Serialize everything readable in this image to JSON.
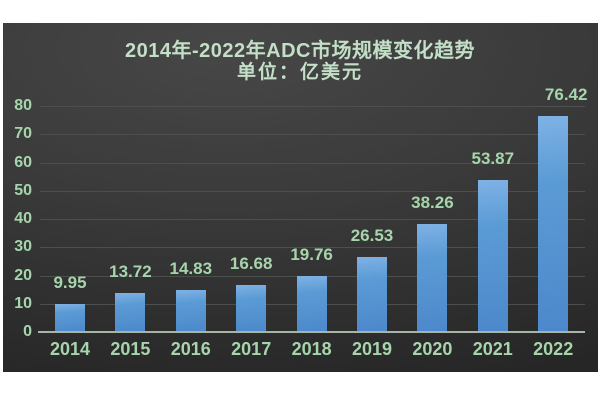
{
  "chart_data": {
    "type": "bar",
    "title": "2014年-2022年ADC市场规模变化趋势",
    "subtitle": "单位：亿美元",
    "categories": [
      "2014",
      "2015",
      "2016",
      "2017",
      "2018",
      "2019",
      "2020",
      "2021",
      "2022"
    ],
    "values": [
      9.95,
      13.72,
      14.83,
      16.68,
      19.76,
      26.53,
      38.26,
      53.87,
      76.42
    ],
    "data_labels": [
      "9.95",
      "13.72",
      "14.83",
      "16.68",
      "19.76",
      "26.53",
      "38.26",
      "53.87",
      "76.42"
    ],
    "xlabel": "",
    "ylabel": "",
    "ylim": [
      0,
      80
    ],
    "yticks": [
      0,
      10,
      20,
      30,
      40,
      50,
      60,
      70,
      80
    ],
    "grid": true,
    "legend": false
  },
  "colors": {
    "page_bg": "#ffffff",
    "panel_bg_center": "#474747",
    "panel_bg_edge": "#262626",
    "title_text": "#c3dfc7",
    "label_text": "#a6d5ac",
    "bar_top": "#7fb2e5",
    "bar_mid": "#5b9bd5",
    "bar_bottom": "#4c88cb",
    "axis_line": "#a6b5a6",
    "gridline": "#4c504c"
  }
}
